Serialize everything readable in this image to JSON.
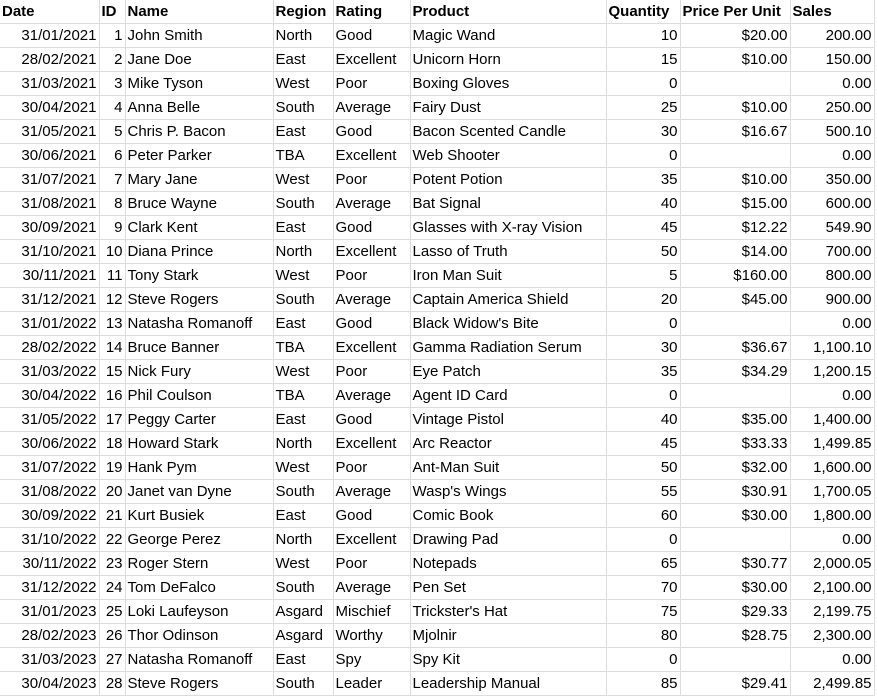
{
  "columns": [
    "Date",
    "ID",
    "Name",
    "Region",
    "Rating",
    "Product",
    "Quantity",
    "Price Per Unit",
    "Sales"
  ],
  "rows": [
    [
      "31/01/2021",
      "1",
      "John Smith",
      "North",
      "Good",
      "Magic Wand",
      "10",
      "$20.00",
      "200.00"
    ],
    [
      "28/02/2021",
      "2",
      "Jane Doe",
      "East",
      "Excellent",
      "Unicorn Horn",
      "15",
      "$10.00",
      "150.00"
    ],
    [
      "31/03/2021",
      "3",
      "Mike Tyson",
      "West",
      "Poor",
      "Boxing Gloves",
      "0",
      "",
      "0.00"
    ],
    [
      "30/04/2021",
      "4",
      "Anna Belle",
      "South",
      "Average",
      "Fairy Dust",
      "25",
      "$10.00",
      "250.00"
    ],
    [
      "31/05/2021",
      "5",
      "Chris P. Bacon",
      "East",
      "Good",
      "Bacon Scented Candle",
      "30",
      "$16.67",
      "500.10"
    ],
    [
      "30/06/2021",
      "6",
      "Peter Parker",
      "TBA",
      "Excellent",
      "Web Shooter",
      "0",
      "",
      "0.00"
    ],
    [
      "31/07/2021",
      "7",
      "Mary Jane",
      "West",
      "Poor",
      "Potent Potion",
      "35",
      "$10.00",
      "350.00"
    ],
    [
      "31/08/2021",
      "8",
      "Bruce Wayne",
      "South",
      "Average",
      "Bat Signal",
      "40",
      "$15.00",
      "600.00"
    ],
    [
      "30/09/2021",
      "9",
      "Clark Kent",
      "East",
      "Good",
      "Glasses with X-ray Vision",
      "45",
      "$12.22",
      "549.90"
    ],
    [
      "31/10/2021",
      "10",
      "Diana Prince",
      "North",
      "Excellent",
      "Lasso of Truth",
      "50",
      "$14.00",
      "700.00"
    ],
    [
      "30/11/2021",
      "11",
      "Tony Stark",
      "West",
      "Poor",
      "Iron Man Suit",
      "5",
      "$160.00",
      "800.00"
    ],
    [
      "31/12/2021",
      "12",
      "Steve Rogers",
      "South",
      "Average",
      "Captain America Shield",
      "20",
      "$45.00",
      "900.00"
    ],
    [
      "31/01/2022",
      "13",
      "Natasha Romanoff",
      "East",
      "Good",
      "Black Widow's Bite",
      "0",
      "",
      "0.00"
    ],
    [
      "28/02/2022",
      "14",
      "Bruce Banner",
      "TBA",
      "Excellent",
      "Gamma Radiation Serum",
      "30",
      "$36.67",
      "1,100.10"
    ],
    [
      "31/03/2022",
      "15",
      "Nick Fury",
      "West",
      "Poor",
      "Eye Patch",
      "35",
      "$34.29",
      "1,200.15"
    ],
    [
      "30/04/2022",
      "16",
      "Phil Coulson",
      "TBA",
      "Average",
      "Agent ID Card",
      "0",
      "",
      "0.00"
    ],
    [
      "31/05/2022",
      "17",
      "Peggy Carter",
      "East",
      "Good",
      "Vintage Pistol",
      "40",
      "$35.00",
      "1,400.00"
    ],
    [
      "30/06/2022",
      "18",
      "Howard Stark",
      "North",
      "Excellent",
      "Arc Reactor",
      "45",
      "$33.33",
      "1,499.85"
    ],
    [
      "31/07/2022",
      "19",
      "Hank Pym",
      "West",
      "Poor",
      "Ant-Man Suit",
      "50",
      "$32.00",
      "1,600.00"
    ],
    [
      "31/08/2022",
      "20",
      "Janet van Dyne",
      "South",
      "Average",
      "Wasp's Wings",
      "55",
      "$30.91",
      "1,700.05"
    ],
    [
      "30/09/2022",
      "21",
      "Kurt Busiek",
      "East",
      "Good",
      "Comic Book",
      "60",
      "$30.00",
      "1,800.00"
    ],
    [
      "31/10/2022",
      "22",
      "George Perez",
      "North",
      "Excellent",
      "Drawing Pad",
      "0",
      "",
      "0.00"
    ],
    [
      "30/11/2022",
      "23",
      "Roger Stern",
      "West",
      "Poor",
      "Notepads",
      "65",
      "$30.77",
      "2,000.05"
    ],
    [
      "31/12/2022",
      "24",
      "Tom DeFalco",
      "South",
      "Average",
      "Pen Set",
      "70",
      "$30.00",
      "2,100.00"
    ],
    [
      "31/01/2023",
      "25",
      "Loki Laufeyson",
      "Asgard",
      "Mischief",
      "Trickster's Hat",
      "75",
      "$29.33",
      "2,199.75"
    ],
    [
      "28/02/2023",
      "26",
      "Thor Odinson",
      "Asgard",
      "Worthy",
      "Mjolnir",
      "80",
      "$28.75",
      "2,300.00"
    ],
    [
      "31/03/2023",
      "27",
      "Natasha Romanoff",
      "East",
      "Spy",
      "Spy Kit",
      "0",
      "",
      "0.00"
    ],
    [
      "30/04/2023",
      "28",
      "Steve Rogers",
      "South",
      "Leader",
      "Leadership Manual",
      "85",
      "$29.41",
      "2,499.85"
    ]
  ]
}
